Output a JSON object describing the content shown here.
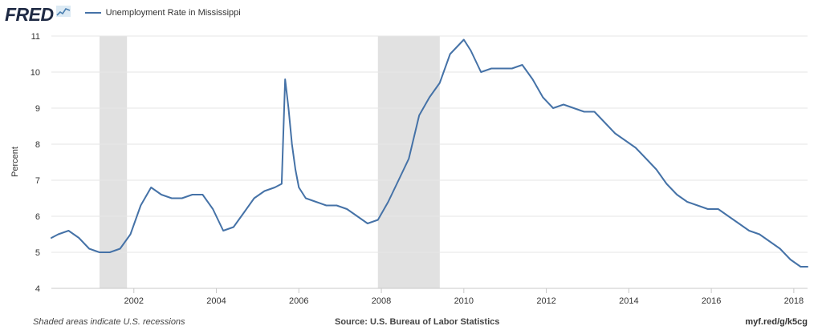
{
  "header": {
    "logo_text": "FRED",
    "logo_icon": "fred-chart-icon",
    "legend_label": "Unemployment Rate in Mississippi",
    "legend_color": "#4572a7"
  },
  "footer": {
    "note": "Shaded areas indicate U.S. recessions",
    "source": "Source: U.S. Bureau of Labor Statistics",
    "link": "myf.red/g/k5cg"
  },
  "colors": {
    "line": "#4572a7",
    "recession": "#e1e1e1",
    "grid": "#e6e6e6",
    "axis_text": "#333333"
  },
  "chart_data": {
    "type": "line",
    "title": "",
    "xlabel": "",
    "ylabel": "Percent",
    "ylim": [
      4,
      11
    ],
    "xlim": [
      "2000-01",
      "2018-05"
    ],
    "y_ticks": [
      "4",
      "5",
      "6",
      "7",
      "8",
      "9",
      "10",
      "11"
    ],
    "x_ticks": [
      "2002",
      "2004",
      "2006",
      "2008",
      "2010",
      "2012",
      "2014",
      "2016",
      "2018"
    ],
    "grid": true,
    "legend": "top-left",
    "recessions": [
      [
        "2001-03",
        "2001-11"
      ],
      [
        "2007-12",
        "2009-06"
      ]
    ],
    "series": [
      {
        "name": "Unemployment Rate in Mississippi",
        "x": [
          "2000-01",
          "2000-03",
          "2000-06",
          "2000-09",
          "2000-12",
          "2001-03",
          "2001-06",
          "2001-09",
          "2001-12",
          "2002-03",
          "2002-06",
          "2002-09",
          "2002-12",
          "2003-03",
          "2003-06",
          "2003-09",
          "2003-12",
          "2004-03",
          "2004-06",
          "2004-09",
          "2004-12",
          "2005-03",
          "2005-06",
          "2005-08",
          "2005-09",
          "2005-10",
          "2005-11",
          "2005-12",
          "2006-01",
          "2006-03",
          "2006-06",
          "2006-09",
          "2006-12",
          "2007-03",
          "2007-06",
          "2007-09",
          "2007-12",
          "2008-03",
          "2008-06",
          "2008-09",
          "2008-12",
          "2009-03",
          "2009-06",
          "2009-09",
          "2009-12",
          "2010-01",
          "2010-03",
          "2010-06",
          "2010-09",
          "2010-12",
          "2011-03",
          "2011-06",
          "2011-09",
          "2011-12",
          "2012-03",
          "2012-06",
          "2012-09",
          "2012-12",
          "2013-03",
          "2013-06",
          "2013-09",
          "2013-12",
          "2014-03",
          "2014-06",
          "2014-09",
          "2014-12",
          "2015-03",
          "2015-06",
          "2015-09",
          "2015-12",
          "2016-03",
          "2016-06",
          "2016-09",
          "2016-12",
          "2017-03",
          "2017-06",
          "2017-09",
          "2017-12",
          "2018-03",
          "2018-05"
        ],
        "values": [
          5.4,
          5.5,
          5.6,
          5.4,
          5.1,
          5.0,
          5.0,
          5.1,
          5.5,
          6.3,
          6.8,
          6.6,
          6.5,
          6.5,
          6.6,
          6.6,
          6.2,
          5.6,
          5.7,
          6.1,
          6.5,
          6.7,
          6.8,
          6.9,
          9.8,
          9.0,
          8.0,
          7.3,
          6.8,
          6.5,
          6.4,
          6.3,
          6.3,
          6.2,
          6.0,
          5.8,
          5.9,
          6.4,
          7.0,
          7.6,
          8.8,
          9.3,
          9.7,
          10.5,
          10.8,
          10.9,
          10.6,
          10.0,
          10.1,
          10.1,
          10.1,
          10.2,
          9.8,
          9.3,
          9.0,
          9.1,
          9.0,
          8.9,
          8.9,
          8.6,
          8.3,
          8.1,
          7.9,
          7.6,
          7.3,
          6.9,
          6.6,
          6.4,
          6.3,
          6.2,
          6.2,
          6.0,
          5.8,
          5.6,
          5.5,
          5.3,
          5.1,
          4.8,
          4.6,
          4.6
        ]
      }
    ]
  }
}
